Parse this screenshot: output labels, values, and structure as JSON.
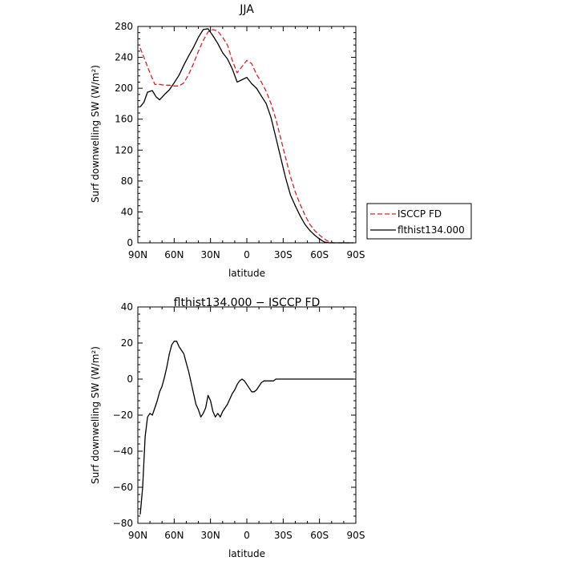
{
  "chart_data": [
    {
      "type": "line",
      "title": "JJA",
      "xlabel": "latitude",
      "ylabel": "Surf downwelling SW (W/m²)",
      "xlim": [
        90,
        -90
      ],
      "ylim": [
        0,
        280
      ],
      "x_ticks": [
        90,
        60,
        30,
        0,
        -30,
        -60,
        -90
      ],
      "x_tick_labels": [
        "90N",
        "60N",
        "30N",
        "0",
        "30S",
        "60S",
        "90S"
      ],
      "y_ticks": [
        0,
        40,
        80,
        120,
        160,
        200,
        240,
        280
      ],
      "y_tick_labels": [
        "0",
        "40",
        "80",
        "120",
        "160",
        "200",
        "240",
        "280"
      ],
      "legend": "right, outside plot",
      "series": [
        {
          "name": "ISCCP FD",
          "color": "#e02020",
          "style": "dashed",
          "x": [
            88,
            84,
            80,
            76,
            72,
            68,
            64,
            60,
            56,
            52,
            48,
            44,
            40,
            36,
            32,
            28,
            24,
            20,
            16,
            12,
            8,
            4,
            0,
            -4,
            -8,
            -12,
            -16,
            -20,
            -24,
            -28,
            -32,
            -36,
            -40,
            -44,
            -48,
            -52,
            -56,
            -60,
            -64,
            -68,
            -72,
            -76,
            -80,
            -84,
            -88
          ],
          "values": [
            252,
            236,
            220,
            205,
            205,
            204,
            204,
            203,
            203,
            207,
            218,
            232,
            248,
            262,
            273,
            276,
            274,
            266,
            256,
            236,
            220,
            228,
            236,
            232,
            218,
            208,
            196,
            180,
            160,
            135,
            110,
            86,
            66,
            50,
            36,
            24,
            16,
            10,
            5,
            1,
            0,
            0,
            0,
            0,
            0
          ]
        },
        {
          "name": "flthist134.000",
          "color": "#000000",
          "style": "solid",
          "x": [
            88,
            85,
            82,
            78,
            75,
            72,
            68,
            64,
            60,
            56,
            52,
            48,
            44,
            40,
            36,
            32,
            28,
            24,
            20,
            16,
            12,
            8,
            4,
            0,
            -4,
            -8,
            -12,
            -16,
            -20,
            -24,
            -28,
            -32,
            -36,
            -40,
            -44,
            -48,
            -52,
            -56,
            -60,
            -64,
            -68,
            -72,
            -76,
            -80,
            -84,
            -88
          ],
          "values": [
            176,
            182,
            195,
            197,
            189,
            185,
            192,
            198,
            207,
            217,
            230,
            242,
            253,
            266,
            276,
            277,
            268,
            258,
            246,
            238,
            225,
            208,
            211,
            214,
            206,
            200,
            190,
            180,
            162,
            136,
            110,
            84,
            62,
            48,
            35,
            24,
            16,
            10,
            5,
            1,
            0,
            0,
            0,
            0,
            0,
            0
          ]
        }
      ]
    },
    {
      "type": "line",
      "title": "flthist134.000 − ISCCP FD",
      "xlabel": "latitude",
      "ylabel": "Surf downwelling SW (W/m²)",
      "xlim": [
        90,
        -90
      ],
      "ylim": [
        -80,
        40
      ],
      "x_ticks": [
        90,
        60,
        30,
        0,
        -30,
        -60,
        -90
      ],
      "x_tick_labels": [
        "90N",
        "60N",
        "30N",
        "0",
        "30S",
        "60S",
        "90S"
      ],
      "y_ticks": [
        -80,
        -60,
        -40,
        -20,
        0,
        20,
        40
      ],
      "y_tick_labels": [
        "−80",
        "−60",
        "−40",
        "−20",
        "0",
        "20",
        "40"
      ],
      "series": [
        {
          "name": "",
          "color": "#000000",
          "style": "solid",
          "x": [
            88,
            86,
            84,
            82,
            80,
            78,
            76,
            74,
            72,
            70,
            68,
            66,
            64,
            62,
            60,
            58,
            56,
            54,
            52,
            50,
            48,
            46,
            44,
            42,
            40,
            38,
            36,
            34,
            32,
            30,
            28,
            26,
            24,
            22,
            20,
            18,
            16,
            14,
            12,
            10,
            8,
            6,
            4,
            2,
            0,
            -2,
            -4,
            -6,
            -8,
            -10,
            -12,
            -14,
            -16,
            -18,
            -20,
            -22,
            -24,
            -26,
            -28,
            -30,
            -32,
            -34,
            -36,
            -38,
            -40,
            -42,
            -44,
            -46,
            -48,
            -50,
            -52,
            -54,
            -56,
            -58,
            -60,
            -62,
            -64,
            -66,
            -68,
            -70,
            -72,
            -74,
            -76,
            -78,
            -80,
            -82,
            -84,
            -86,
            -88
          ],
          "values": [
            -75,
            -60,
            -32,
            -21,
            -19,
            -20,
            -16,
            -12,
            -7,
            -4,
            1,
            7,
            14,
            19,
            21,
            21,
            18,
            16,
            14,
            9,
            4,
            -2,
            -8,
            -14,
            -17,
            -21,
            -19,
            -16,
            -9,
            -12,
            -18,
            -21,
            -19,
            -21,
            -18,
            -16,
            -14,
            -11,
            -8,
            -6,
            -3,
            -1,
            0,
            -1,
            -3,
            -5,
            -7,
            -7,
            -6,
            -4,
            -2,
            -1,
            -1,
            -1,
            -1,
            -1,
            0,
            0,
            0,
            0,
            0,
            0,
            0,
            0,
            0,
            0,
            0,
            0,
            0,
            0,
            0,
            0,
            0,
            0,
            0,
            0,
            0,
            0,
            0,
            0,
            0,
            0,
            0,
            0,
            0,
            0,
            0,
            0,
            0
          ]
        }
      ]
    }
  ]
}
